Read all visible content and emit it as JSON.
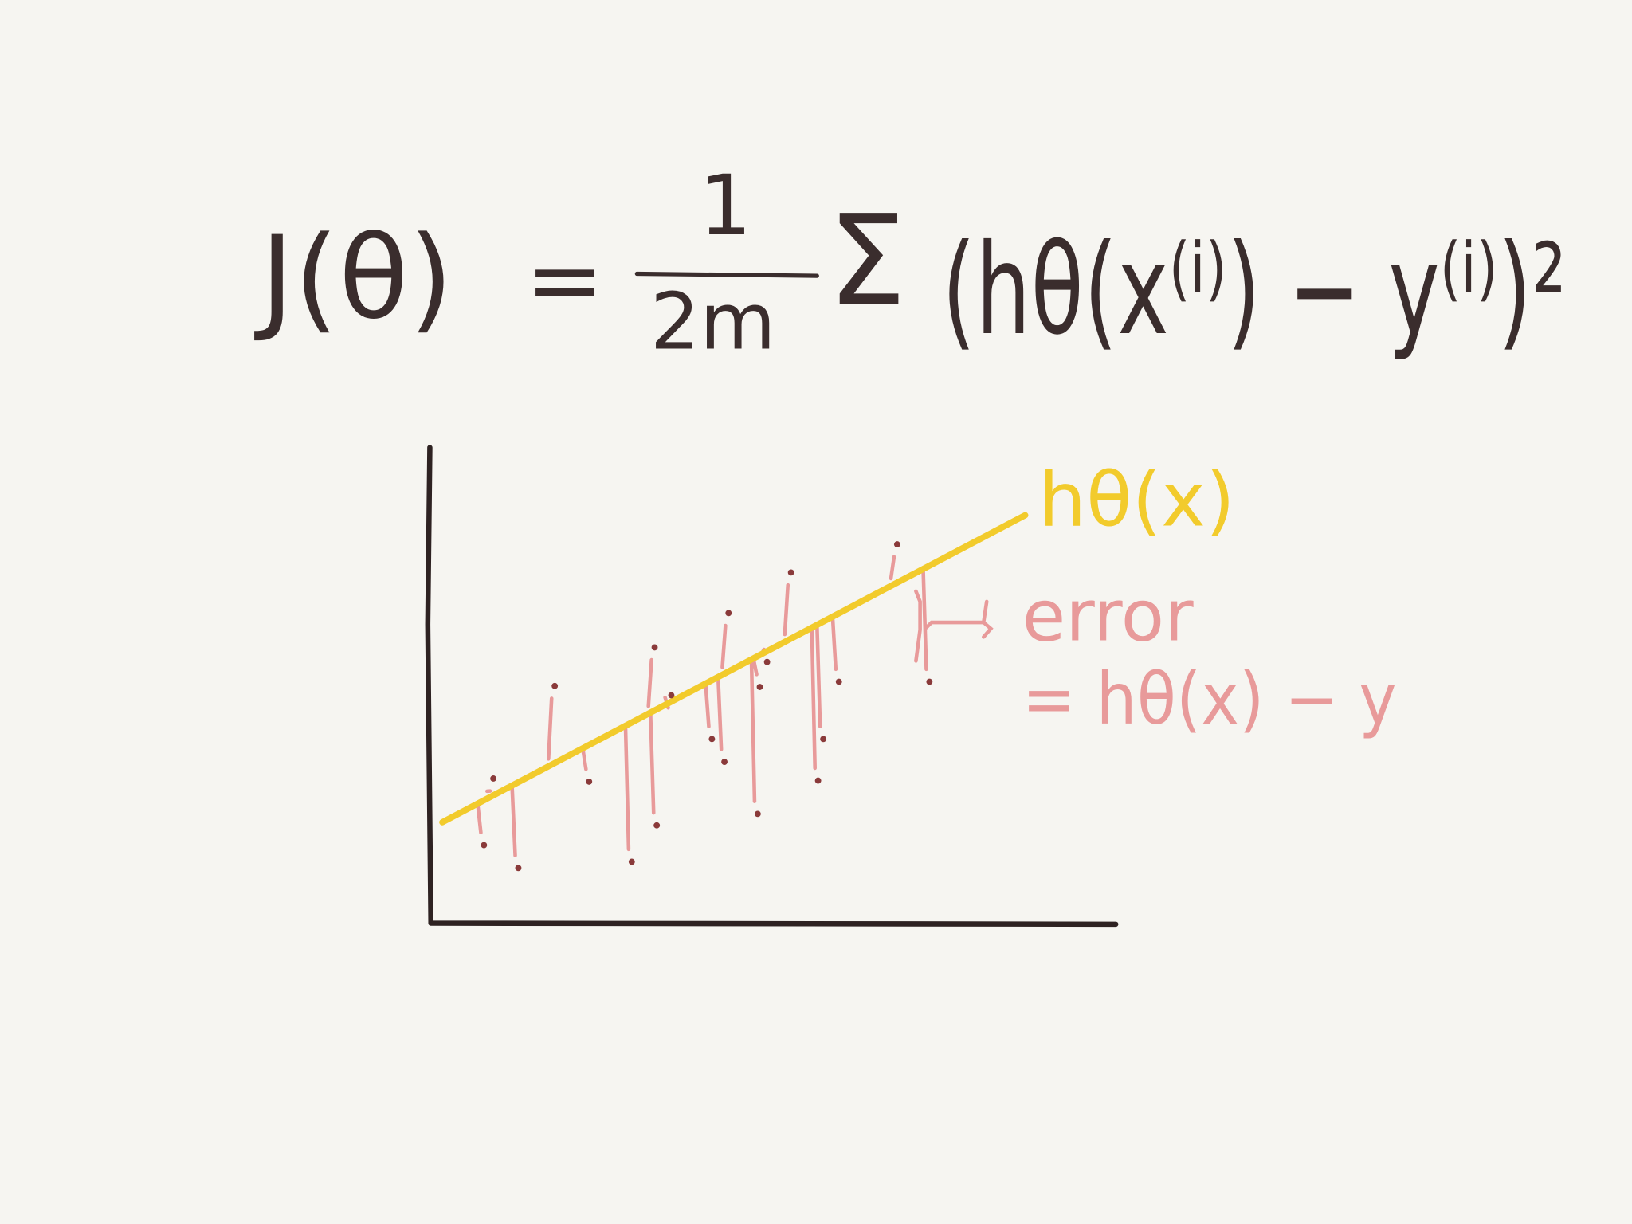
{
  "formula": {
    "lhs": "J(θ)",
    "equals": "=",
    "numerator": "1",
    "denominator": "2m",
    "sum": "Σ",
    "body": "(hθ(x⁽ⁱ⁾) − y⁽ⁱ⁾)²"
  },
  "labels": {
    "hypothesis": "hθ(x)",
    "error": "error",
    "error_definition": "= hθ(x) − y"
  }
}
